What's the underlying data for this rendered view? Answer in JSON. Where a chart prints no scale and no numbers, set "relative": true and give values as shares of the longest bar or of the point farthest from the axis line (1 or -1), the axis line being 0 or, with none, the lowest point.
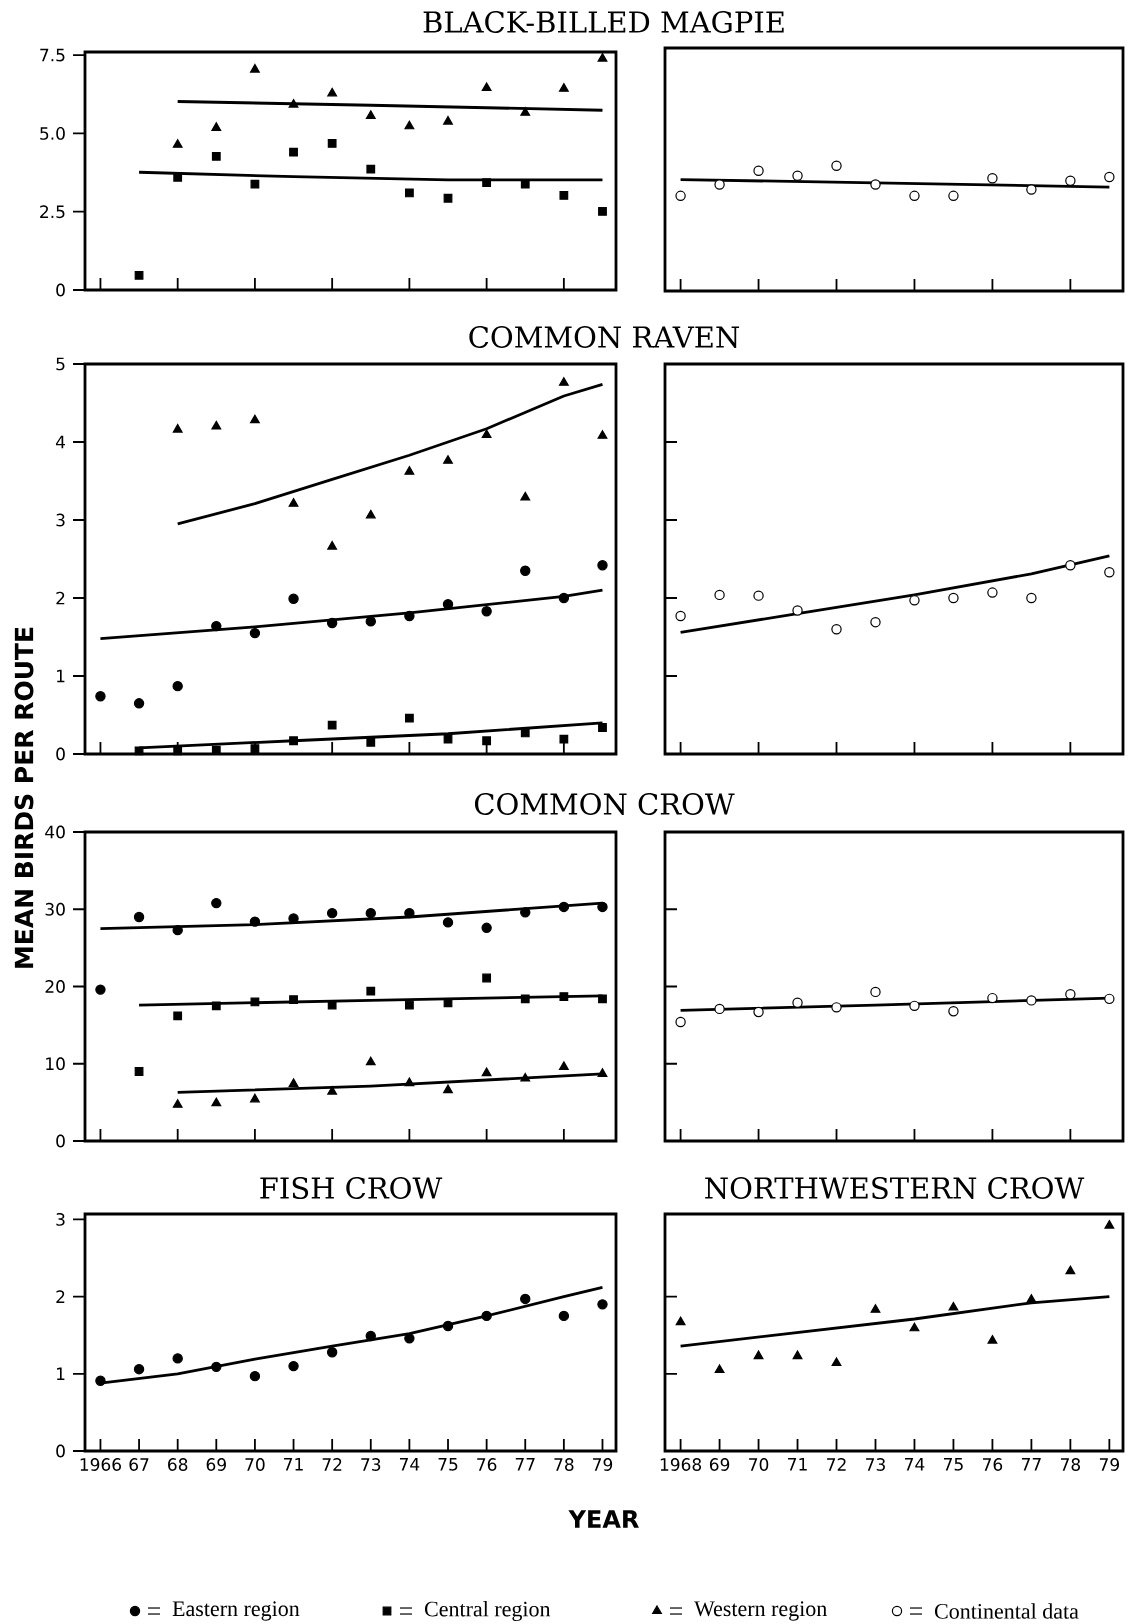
{
  "chart_data": [
    {
      "type": "scatter",
      "title": "BLACK-BILLED MAGPIE",
      "xlim": [
        1965.6,
        1979.35
      ],
      "ylim": [
        0,
        7.6
      ],
      "xticks": [
        {
          "value": 1966,
          "label": null
        },
        {
          "value": 1968,
          "label": null
        },
        {
          "value": 1970,
          "label": null
        },
        {
          "value": 1972,
          "label": null
        },
        {
          "value": 1974,
          "label": null
        },
        {
          "value": 1976,
          "label": null
        },
        {
          "value": 1978,
          "label": null
        }
      ],
      "yticks": [
        0,
        2.5,
        {
          "value": 5,
          "label": "5.0"
        },
        7.5
      ],
      "tick_labels": "y",
      "series": [
        {
          "marker": "square",
          "color": "#000000",
          "x": [
            1967,
            1968,
            1969,
            1970,
            1971,
            1972,
            1973,
            1974,
            1975,
            1976,
            1977,
            1978,
            1979
          ],
          "values": [
            0.47,
            3.6,
            4.27,
            3.38,
            4.4,
            4.68,
            3.86,
            3.1,
            2.93,
            3.43,
            3.38,
            3.02,
            2.51
          ]
        },
        {
          "marker": "triangle",
          "color": "#000000",
          "x": [
            1968,
            1969,
            1970,
            1971,
            1972,
            1973,
            1974,
            1975,
            1976,
            1977,
            1978,
            1979
          ],
          "values": [
            4.64,
            5.18,
            7.04,
            5.92,
            6.28,
            5.56,
            5.23,
            5.38,
            6.45,
            5.66,
            6.43,
            7.39
          ]
        },
        {
          "type": "line",
          "color": "#000000",
          "x": [
            1968,
            1973,
            1979
          ],
          "values": [
            6.02,
            5.9,
            5.74
          ]
        },
        {
          "type": "line",
          "color": "#000000",
          "x": [
            1967,
            1971,
            1975,
            1979
          ],
          "values": [
            3.76,
            3.62,
            3.52,
            3.52
          ]
        }
      ]
    },
    {
      "type": "scatter",
      "relative": true,
      "xlim": [
        1967.6,
        1979.35
      ],
      "xticks": [
        {
          "value": 1968,
          "label": null
        },
        {
          "value": 1970,
          "label": null
        },
        {
          "value": 1972,
          "label": null
        },
        {
          "value": 1974,
          "label": null
        },
        {
          "value": 1976,
          "label": null
        },
        {
          "value": 1978,
          "label": null
        }
      ],
      "tick_labels": false,
      "series": [
        {
          "marker": "circle",
          "color": "#ffffff",
          "x": [
            1968,
            1969,
            1970,
            1971,
            1972,
            1973,
            1974,
            1975,
            1976,
            1977,
            1978,
            1979
          ],
          "values": [
            0.76,
            0.85,
            0.96,
            0.92,
            1,
            0.85,
            0.76,
            0.76,
            0.9,
            0.81,
            0.88,
            0.91
          ]
        },
        {
          "type": "line",
          "color": "#000000",
          "x": [
            1968,
            1979
          ],
          "values": [
            0.89,
            0.83
          ]
        }
      ]
    },
    {
      "type": "scatter",
      "title": "COMMON RAVEN",
      "ylabel": "MEAN BIRDS PER ROUTE",
      "legend": "bottom",
      "xlim": [
        1965.6,
        1979.35
      ],
      "ylim": [
        0,
        5
      ],
      "xticks": [
        {
          "value": 1966,
          "label": null
        },
        {
          "value": 1968,
          "label": null
        },
        {
          "value": 1970,
          "label": null
        },
        {
          "value": 1972,
          "label": null
        },
        {
          "value": 1974,
          "label": null
        },
        {
          "value": 1976,
          "label": null
        },
        {
          "value": 1978,
          "label": null
        }
      ],
      "yticks": [
        0,
        1,
        2,
        3,
        4,
        5
      ],
      "tick_labels": "y",
      "series": [
        {
          "name": "Eastern region",
          "marker": "circle",
          "color": "#000000",
          "x": [
            1966,
            1967,
            1968,
            1969,
            1970,
            1971,
            1972,
            1973,
            1974,
            1975,
            1976,
            1977,
            1978,
            1979
          ],
          "values": [
            0.74,
            0.65,
            0.87,
            1.64,
            1.55,
            1.99,
            1.68,
            1.7,
            1.77,
            1.92,
            1.83,
            2.35,
            2.0,
            2.42
          ]
        },
        {
          "name": "Central region",
          "marker": "square",
          "color": "#000000",
          "x": [
            1967,
            1968,
            1969,
            1970,
            1971,
            1972,
            1973,
            1974,
            1975,
            1976,
            1977,
            1978,
            1979
          ],
          "values": [
            0.04,
            0.04,
            0.05,
            0.07,
            0.17,
            0.37,
            0.15,
            0.46,
            0.19,
            0.17,
            0.27,
            0.19,
            0.34
          ]
        },
        {
          "name": "Western region",
          "marker": "triangle",
          "color": "#000000",
          "x": [
            1968,
            1969,
            1970,
            1971,
            1972,
            1973,
            1974,
            1975,
            1976,
            1977,
            1978,
            1979
          ],
          "values": [
            4.16,
            4.2,
            4.28,
            3.21,
            2.66,
            3.06,
            3.62,
            3.76,
            4.09,
            3.29,
            4.76,
            4.08
          ]
        },
        {
          "type": "line",
          "color": "#000000",
          "x": [
            1968,
            1970,
            1972,
            1974,
            1976,
            1978,
            1979
          ],
          "values": [
            2.95,
            3.21,
            3.52,
            3.83,
            4.17,
            4.59,
            4.74
          ]
        },
        {
          "type": "line",
          "color": "#000000",
          "x": [
            1966,
            1970,
            1974,
            1978,
            1979
          ],
          "values": [
            1.48,
            1.63,
            1.81,
            2.02,
            2.1
          ]
        },
        {
          "type": "line",
          "color": "#000000",
          "x": [
            1967,
            1971,
            1975,
            1979
          ],
          "values": [
            0.08,
            0.17,
            0.26,
            0.4
          ]
        }
      ]
    },
    {
      "type": "scatter",
      "legend": "bottom",
      "xlim": [
        1967.6,
        1979.35
      ],
      "ylim": [
        0,
        5
      ],
      "xticks": [
        {
          "value": 1968,
          "label": null
        },
        {
          "value": 1970,
          "label": null
        },
        {
          "value": 1972,
          "label": null
        },
        {
          "value": 1974,
          "label": null
        },
        {
          "value": 1976,
          "label": null
        },
        {
          "value": 1978,
          "label": null
        }
      ],
      "yticks": [
        {
          "value": 1,
          "label": null
        },
        {
          "value": 2,
          "label": null
        },
        {
          "value": 3,
          "label": null
        },
        {
          "value": 4,
          "label": null
        }
      ],
      "tick_labels": false,
      "series": [
        {
          "name": "Continental data",
          "marker": "circle",
          "color": "#ffffff",
          "x": [
            1968,
            1969,
            1970,
            1971,
            1972,
            1973,
            1974,
            1975,
            1976,
            1977,
            1978,
            1979
          ],
          "values": [
            1.77,
            2.04,
            2.03,
            1.84,
            1.6,
            1.69,
            1.97,
            2.0,
            2.07,
            2.0,
            2.42,
            2.33
          ]
        },
        {
          "type": "line",
          "color": "#000000",
          "x": [
            1968,
            1971,
            1974,
            1977,
            1979
          ],
          "values": [
            1.56,
            1.8,
            2.04,
            2.31,
            2.54
          ]
        }
      ]
    },
    {
      "type": "scatter",
      "title": "COMMON CROW",
      "xlim": [
        1965.6,
        1979.35
      ],
      "ylim": [
        0,
        40
      ],
      "xticks": [
        {
          "value": 1966,
          "label": null
        },
        {
          "value": 1968,
          "label": null
        },
        {
          "value": 1970,
          "label": null
        },
        {
          "value": 1972,
          "label": null
        },
        {
          "value": 1974,
          "label": null
        },
        {
          "value": 1976,
          "label": null
        },
        {
          "value": 1978,
          "label": null
        }
      ],
      "yticks": [
        0,
        10,
        20,
        30,
        40
      ],
      "tick_labels": "y",
      "series": [
        {
          "marker": "circle",
          "color": "#000000",
          "x": [
            1966,
            1967,
            1968,
            1969,
            1970,
            1971,
            1972,
            1973,
            1974,
            1975,
            1976,
            1977,
            1978,
            1979
          ],
          "values": [
            19.6,
            29.0,
            27.3,
            30.8,
            28.4,
            28.8,
            29.5,
            29.5,
            29.5,
            28.3,
            27.6,
            29.6,
            30.3,
            30.3
          ]
        },
        {
          "marker": "square",
          "color": "#000000",
          "x": [
            1967,
            1968,
            1969,
            1970,
            1971,
            1972,
            1973,
            1974,
            1975,
            1976,
            1977,
            1978,
            1979
          ],
          "values": [
            9.0,
            16.2,
            17.5,
            18.0,
            18.3,
            17.6,
            19.4,
            17.6,
            17.9,
            21.1,
            18.4,
            18.7,
            18.4
          ]
        },
        {
          "marker": "triangle",
          "color": "#000000",
          "x": [
            1968,
            1969,
            1970,
            1971,
            1972,
            1973,
            1974,
            1975,
            1976,
            1977,
            1978,
            1979
          ],
          "values": [
            4.7,
            4.9,
            5.4,
            7.4,
            6.4,
            10.2,
            7.5,
            6.6,
            8.8,
            8.1,
            9.6,
            8.7
          ]
        },
        {
          "type": "line",
          "color": "#000000",
          "x": [
            1966,
            1970,
            1974,
            1979
          ],
          "values": [
            27.5,
            28.0,
            29.0,
            30.8
          ]
        },
        {
          "type": "line",
          "color": "#000000",
          "x": [
            1967,
            1973,
            1979
          ],
          "values": [
            17.6,
            18.2,
            18.8
          ]
        },
        {
          "type": "line",
          "color": "#000000",
          "x": [
            1968,
            1973,
            1979
          ],
          "values": [
            6.3,
            7.1,
            8.7
          ]
        }
      ]
    },
    {
      "type": "scatter",
      "xlim": [
        1967.6,
        1979.35
      ],
      "ylim": [
        0,
        40
      ],
      "xticks": [
        {
          "value": 1968,
          "label": null
        },
        {
          "value": 1970,
          "label": null
        },
        {
          "value": 1972,
          "label": null
        },
        {
          "value": 1974,
          "label": null
        },
        {
          "value": 1976,
          "label": null
        },
        {
          "value": 1978,
          "label": null
        }
      ],
      "yticks": [
        {
          "value": 10,
          "label": null
        },
        {
          "value": 20,
          "label": null
        },
        {
          "value": 30,
          "label": null
        }
      ],
      "tick_labels": false,
      "series": [
        {
          "marker": "circle",
          "color": "#ffffff",
          "x": [
            1968,
            1969,
            1970,
            1971,
            1972,
            1973,
            1974,
            1975,
            1976,
            1977,
            1978,
            1979
          ],
          "values": [
            15.4,
            17.1,
            16.7,
            17.9,
            17.3,
            19.3,
            17.5,
            16.8,
            18.5,
            18.2,
            19.0,
            18.4
          ]
        },
        {
          "type": "line",
          "color": "#000000",
          "x": [
            1968,
            1973,
            1979
          ],
          "values": [
            16.9,
            17.6,
            18.5
          ]
        }
      ]
    },
    {
      "type": "scatter",
      "title": "FISH CROW",
      "xlabel": "YEAR",
      "xlim": [
        1965.6,
        1979.35
      ],
      "ylim": [
        0,
        3.07
      ],
      "xticks": [
        {
          "value": 1966,
          "label": "1966"
        },
        {
          "value": 1967,
          "label": "67"
        },
        {
          "value": 1968,
          "label": "68"
        },
        {
          "value": 1969,
          "label": "69"
        },
        {
          "value": 1970,
          "label": "70"
        },
        {
          "value": 1971,
          "label": "71"
        },
        {
          "value": 1972,
          "label": "72"
        },
        {
          "value": 1973,
          "label": "73"
        },
        {
          "value": 1974,
          "label": "74"
        },
        {
          "value": 1975,
          "label": "75"
        },
        {
          "value": 1976,
          "label": "76"
        },
        {
          "value": 1977,
          "label": "77"
        },
        {
          "value": 1978,
          "label": "78"
        },
        {
          "value": 1979,
          "label": "79"
        }
      ],
      "yticks": [
        0,
        1,
        2,
        3
      ],
      "series": [
        {
          "marker": "circle",
          "color": "#000000",
          "x": [
            1966,
            1967,
            1968,
            1969,
            1970,
            1971,
            1972,
            1973,
            1974,
            1975,
            1976,
            1977,
            1978,
            1979
          ],
          "values": [
            0.91,
            1.06,
            1.2,
            1.09,
            0.97,
            1.1,
            1.28,
            1.49,
            1.46,
            1.62,
            1.75,
            1.97,
            1.75,
            1.9
          ]
        },
        {
          "type": "line",
          "color": "#000000",
          "x": [
            1966,
            1968,
            1970,
            1972,
            1974,
            1976,
            1978,
            1979
          ],
          "values": [
            0.88,
            1.0,
            1.19,
            1.36,
            1.52,
            1.75,
            2.0,
            2.12
          ]
        }
      ]
    },
    {
      "type": "scatter",
      "title": "NORTHWESTERN CROW",
      "xlim": [
        1967.6,
        1979.35
      ],
      "ylim": [
        0,
        3.07
      ],
      "xticks": [
        {
          "value": 1968,
          "label": "1968"
        },
        {
          "value": 1969,
          "label": "69"
        },
        {
          "value": 1970,
          "label": "70"
        },
        {
          "value": 1971,
          "label": "71"
        },
        {
          "value": 1972,
          "label": "72"
        },
        {
          "value": 1973,
          "label": "73"
        },
        {
          "value": 1974,
          "label": "74"
        },
        {
          "value": 1975,
          "label": "75"
        },
        {
          "value": 1976,
          "label": "76"
        },
        {
          "value": 1977,
          "label": "77"
        },
        {
          "value": 1978,
          "label": "78"
        },
        {
          "value": 1979,
          "label": "79"
        }
      ],
      "yticks": [
        {
          "value": 1,
          "label": null
        },
        {
          "value": 2,
          "label": null
        }
      ],
      "tick_labels": "x",
      "series": [
        {
          "marker": "triangle",
          "color": "#000000",
          "x": [
            1968,
            1969,
            1970,
            1971,
            1972,
            1973,
            1974,
            1975,
            1976,
            1977,
            1978,
            1979
          ],
          "values": [
            1.67,
            1.05,
            1.23,
            1.23,
            1.14,
            1.83,
            1.59,
            1.86,
            1.43,
            1.96,
            2.33,
            2.92
          ]
        },
        {
          "type": "line",
          "color": "#000000",
          "x": [
            1968,
            1974,
            1977,
            1979
          ],
          "values": [
            1.36,
            1.71,
            1.92,
            2.0
          ]
        }
      ]
    }
  ]
}
